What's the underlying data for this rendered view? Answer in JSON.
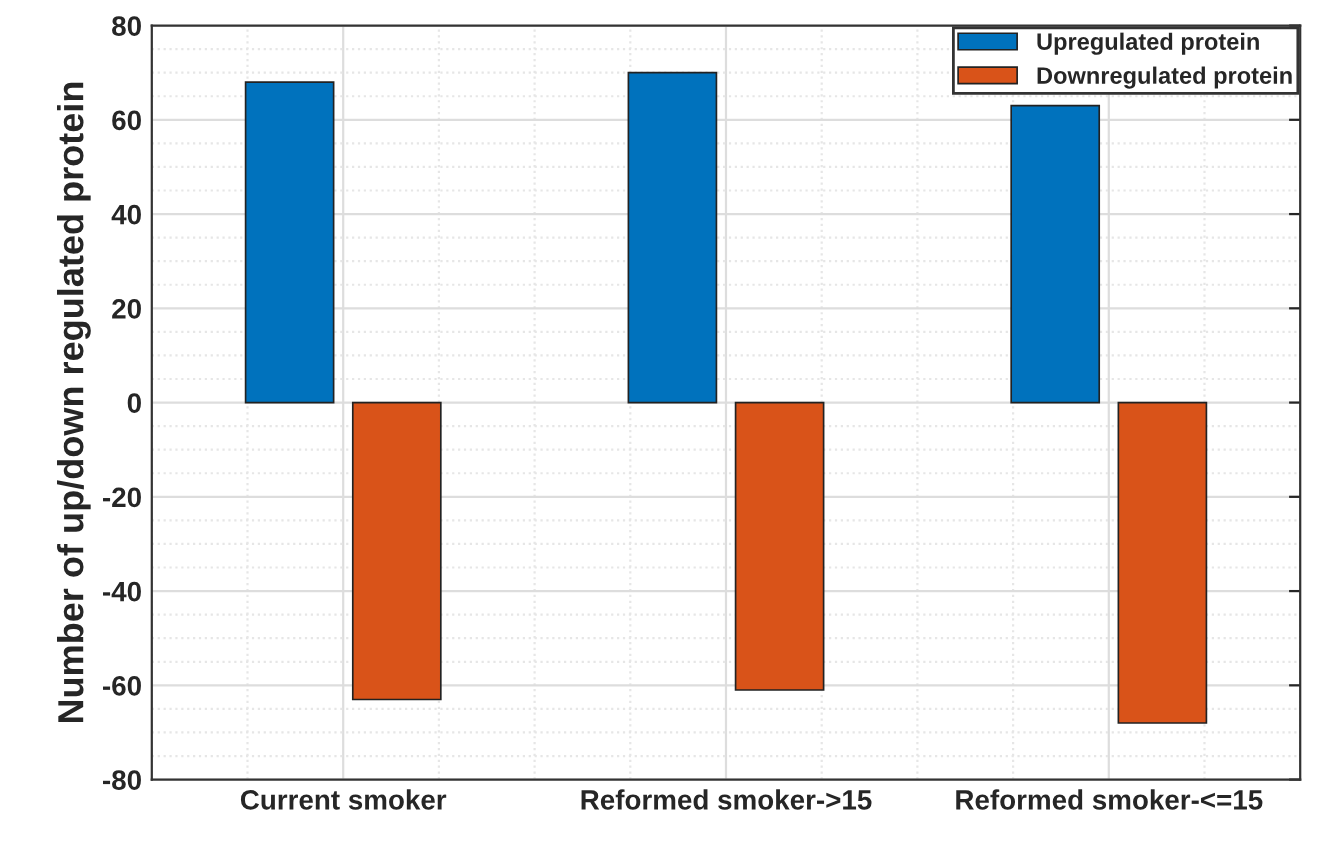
{
  "chart_data": {
    "type": "bar",
    "ylabel": "Number of up/down regulated protein",
    "categories": [
      "Current smoker",
      "Reformed smoker->15",
      "Reformed smoker-<=15"
    ],
    "series": [
      {
        "name": "Upregulated protein",
        "color": "#0072bd",
        "values": [
          68,
          70,
          63
        ]
      },
      {
        "name": "Downregulated protein",
        "color": "#d95319",
        "values": [
          -63,
          -61,
          -68
        ]
      }
    ],
    "ylim": [
      -80,
      80
    ],
    "yticks": [
      -80,
      -60,
      -40,
      -20,
      0,
      20,
      40,
      60,
      80
    ],
    "grid": true,
    "legend": "top right"
  }
}
